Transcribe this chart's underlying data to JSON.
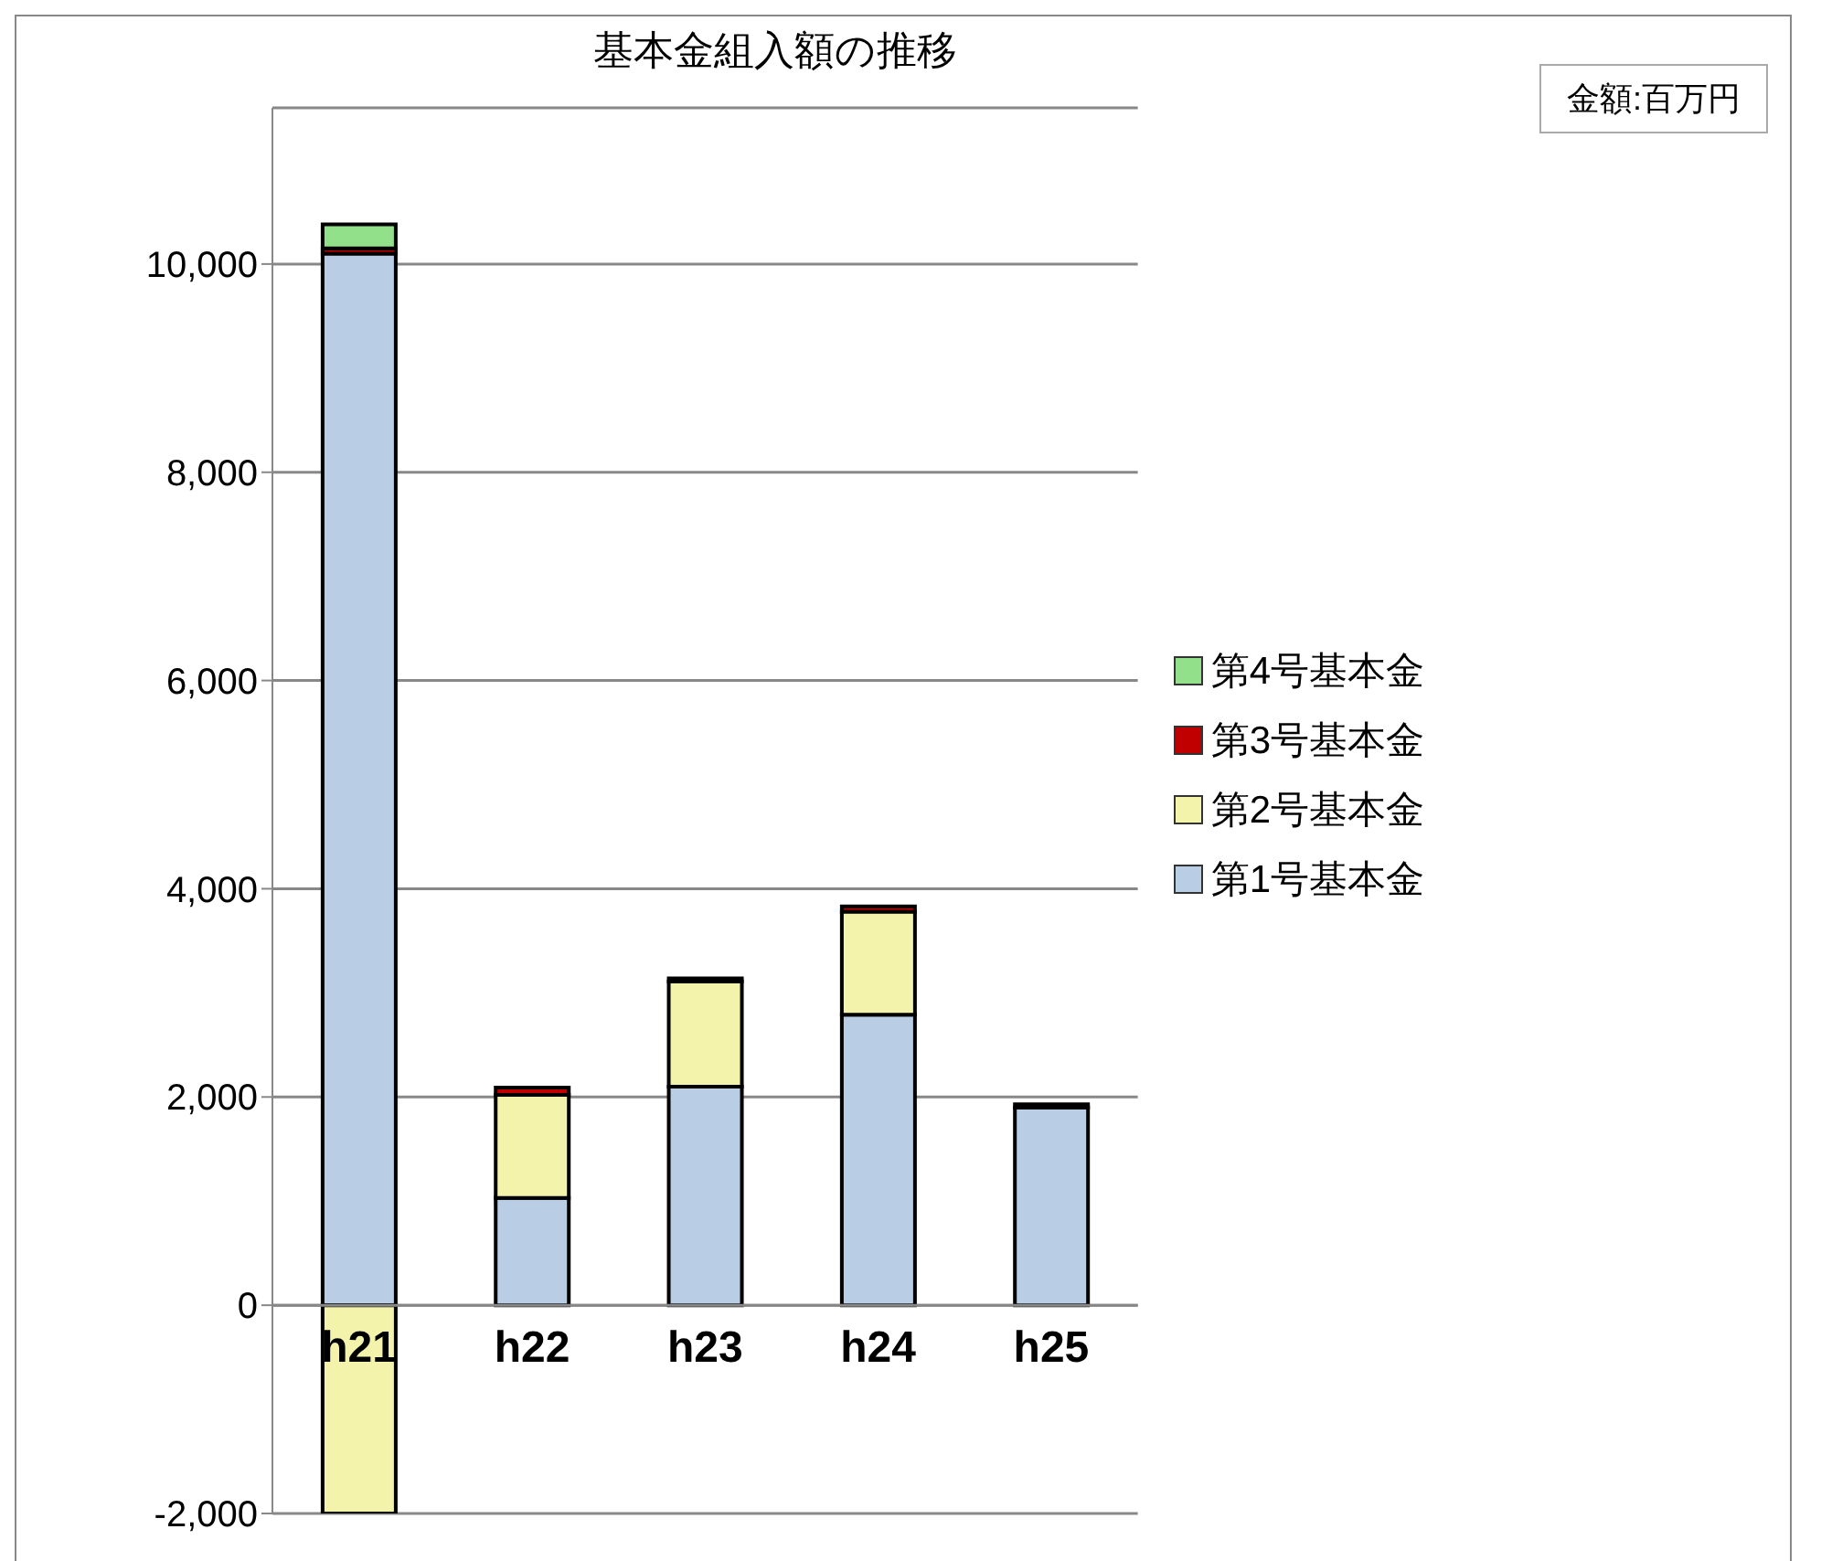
{
  "chart_data": {
    "type": "bar",
    "title": "基本金組入額の推移",
    "annotations": [
      "金額:百万円"
    ],
    "categories": [
      "h21",
      "h22",
      "h23",
      "h24",
      "h25"
    ],
    "stacked": true,
    "series": [
      {
        "name": "第1号基本金",
        "color": "#b9cde5",
        "values": [
          10100,
          1030,
          2100,
          2790,
          1900
        ]
      },
      {
        "name": "第2号基本金",
        "color": "#f3f3ab",
        "values": [
          -2000,
          990,
          1010,
          990,
          null
        ]
      },
      {
        "name": "第3号基本金",
        "color": "#c00000",
        "values": [
          50,
          70,
          30,
          50,
          30
        ]
      },
      {
        "name": "第4号基本金",
        "color": "#92e08a",
        "values": [
          230,
          null,
          null,
          null,
          null
        ]
      }
    ],
    "ylim": [
      -2000,
      11500
    ],
    "yticks": [
      {
        "value": -2000,
        "label": "-2,000"
      },
      0,
      {
        "value": 2000,
        "label": "2,000"
      },
      {
        "value": 4000,
        "label": "4,000"
      },
      {
        "value": 6000,
        "label": "6,000"
      },
      {
        "value": 8000,
        "label": "8,000"
      },
      {
        "value": 10000,
        "label": "10,000"
      }
    ],
    "grid": "y",
    "legend": "right"
  }
}
